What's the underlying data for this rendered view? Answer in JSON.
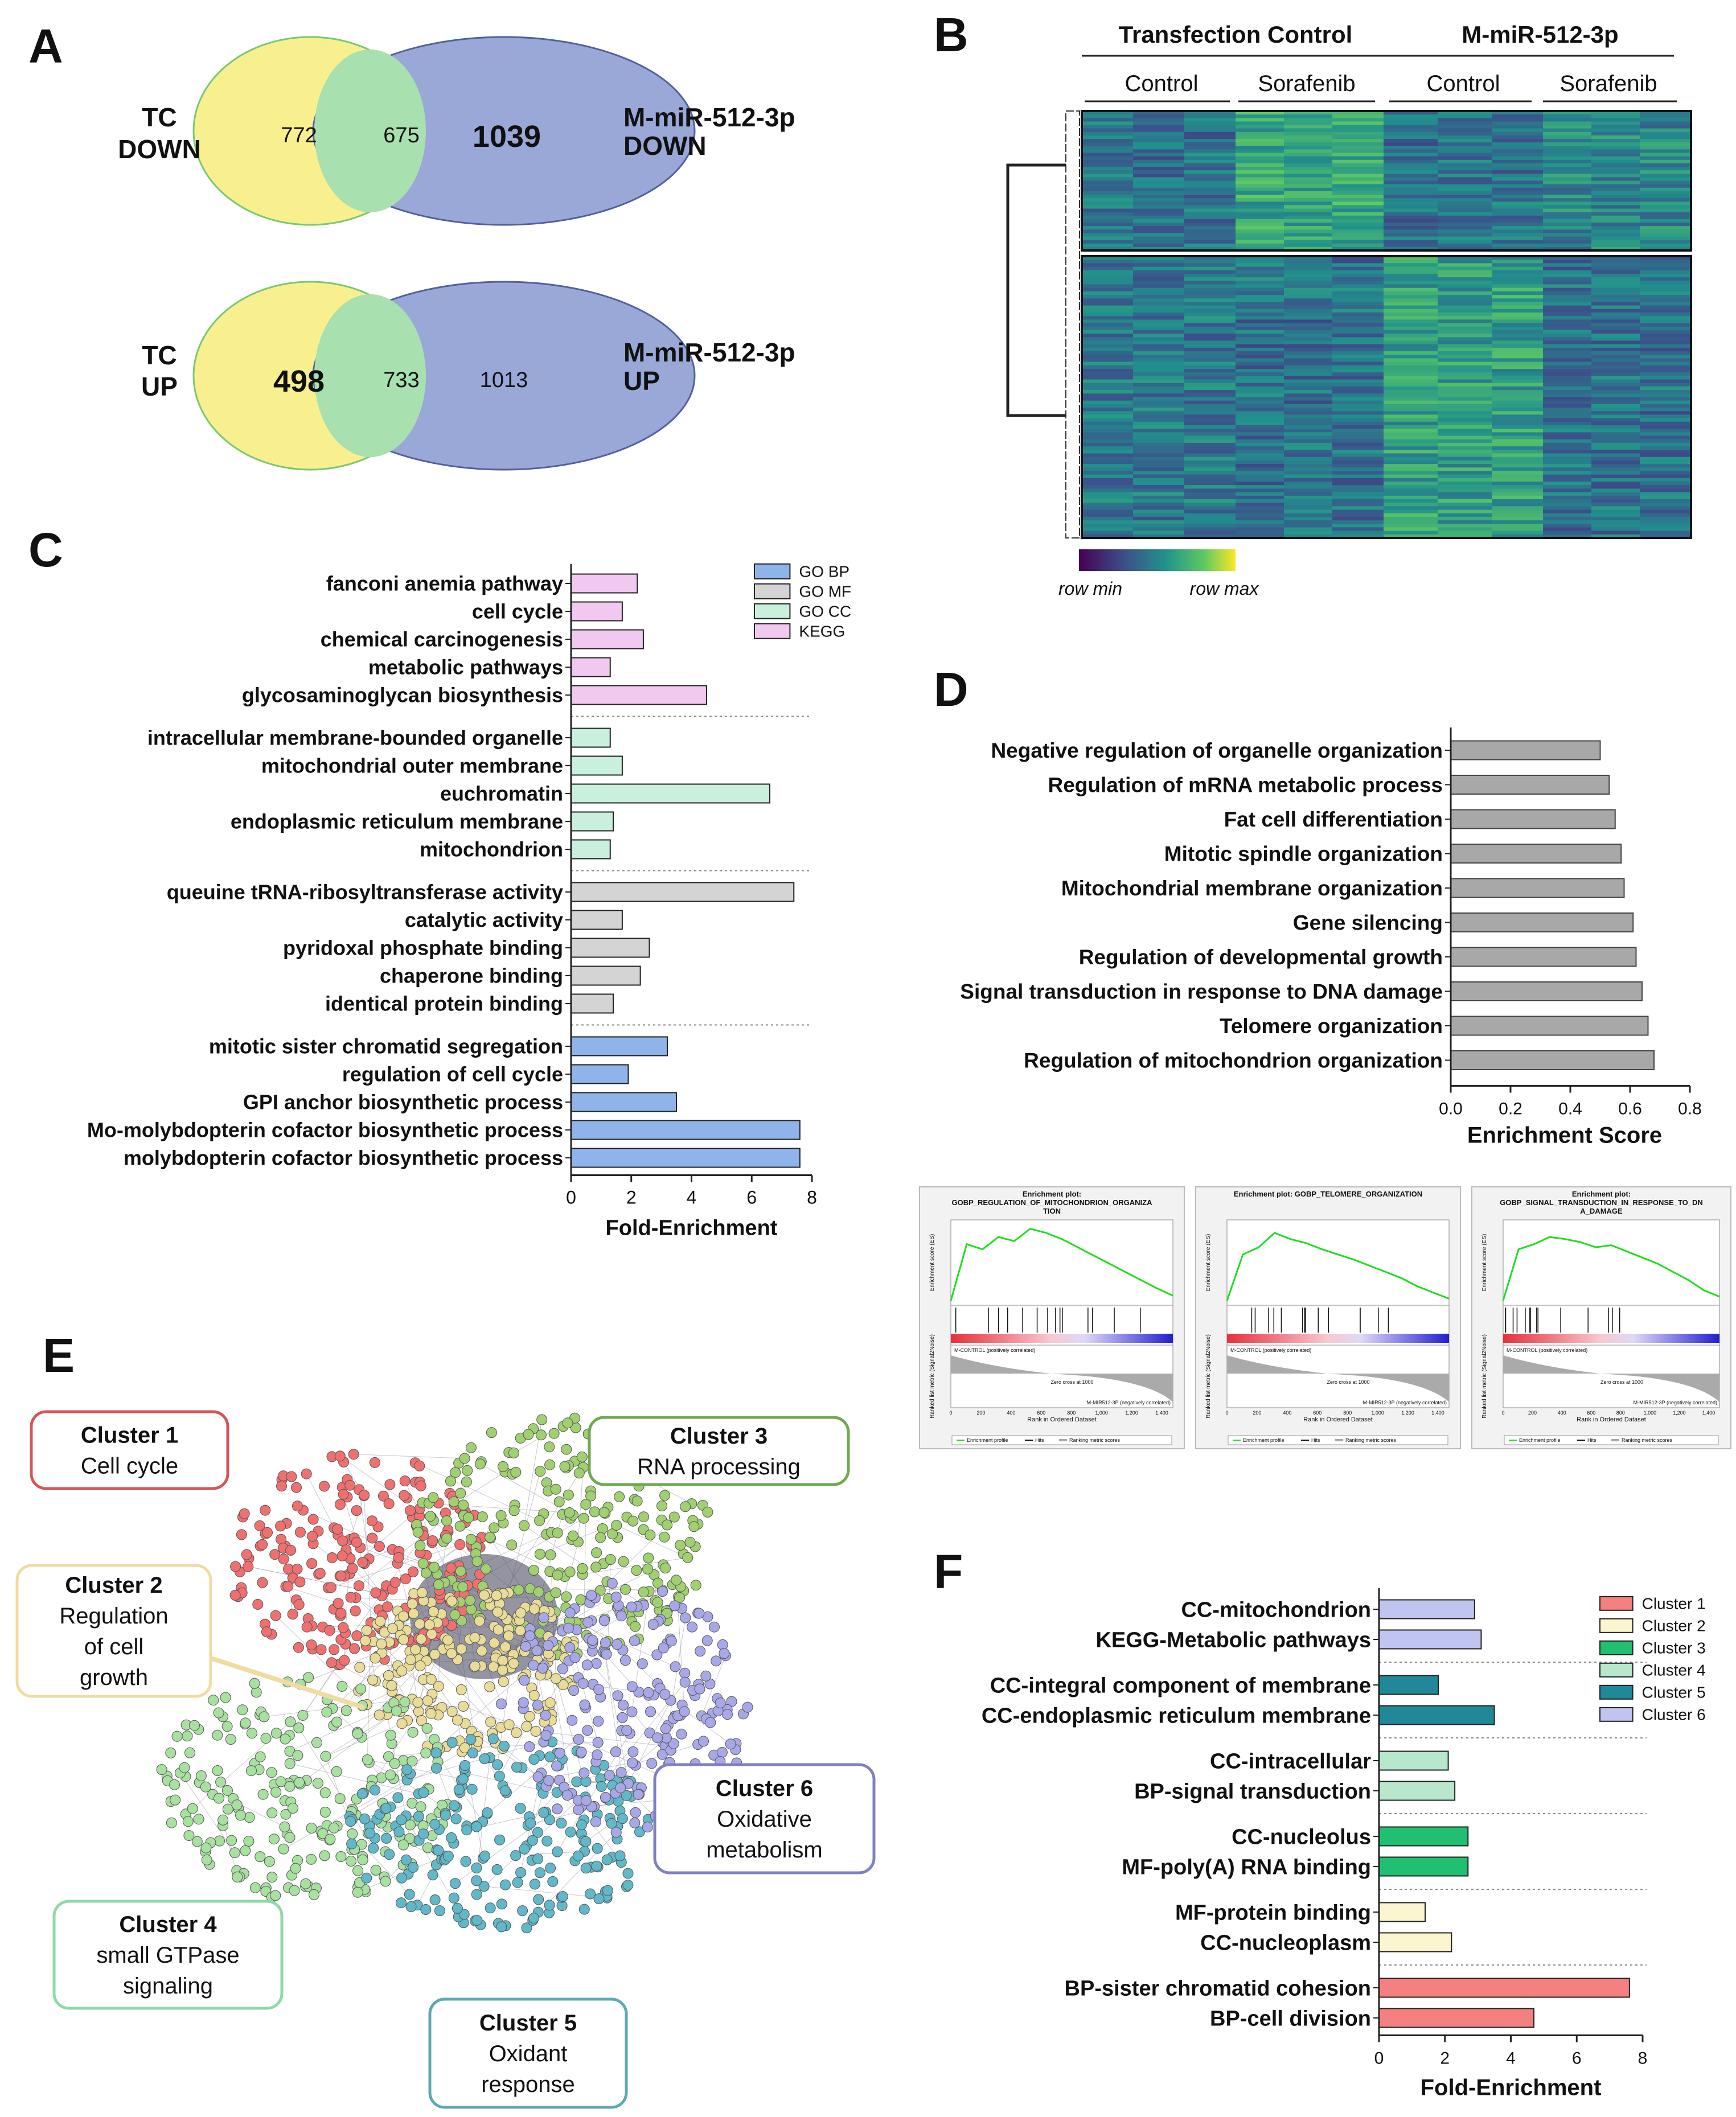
{
  "panel_letters": {
    "a": "A",
    "b": "B",
    "c": "C",
    "d": "D",
    "e": "E",
    "f": "F"
  },
  "colors": {
    "yellow": "#f8f08f",
    "green": "#a8e0b0",
    "blue": "#9aa8d8",
    "go_bp": "#8fb4ea",
    "go_mf": "#d4d4d4",
    "go_cc": "#c8f0dc",
    "kegg": "#f0c8f0",
    "d_bar": "#a8a8a8",
    "cluster1": "#f48080",
    "cluster2": "#fcf6d0",
    "cluster3": "#20c070",
    "cluster4": "#b8e8cc",
    "cluster5": "#208898",
    "cluster6": "#c0c4f0"
  },
  "venn": [
    {
      "left_label_1": "TC",
      "left_label_2": "DOWN",
      "right_label_1": "M-miR-512-3p",
      "right_label_2": "DOWN",
      "left_only": "772",
      "overlap": "675",
      "right_only": "1039",
      "bold_side": "right"
    },
    {
      "left_label_1": "TC",
      "left_label_2": "UP",
      "right_label_1": "M-miR-512-3p",
      "right_label_2": "UP",
      "left_only": "498",
      "overlap": "733",
      "right_only": "1013",
      "bold_side": "left"
    }
  ],
  "heatmap": {
    "group_1": "Transfection Control",
    "group_2": "M-miR-512-3p",
    "sub_labels": [
      "Control",
      "Sorafenib",
      "Control",
      "Sorafenib"
    ],
    "legend_min": "row min",
    "legend_max": "row max"
  },
  "chart_data": [
    {
      "id": "C",
      "type": "bar",
      "orientation": "horizontal",
      "xlabel": "Fold-Enrichment",
      "xlim": [
        0,
        8
      ],
      "xticks": [
        0,
        2,
        4,
        6,
        8
      ],
      "legend": [
        {
          "name": "GO BP",
          "color_key": "go_bp"
        },
        {
          "name": "GO MF",
          "color_key": "go_mf"
        },
        {
          "name": "GO CC",
          "color_key": "go_cc"
        },
        {
          "name": "KEGG",
          "color_key": "kegg"
        }
      ],
      "groups": [
        {
          "series": "KEGG",
          "color_key": "kegg",
          "categories": [
            "fanconi anemia pathway",
            "cell cycle",
            "chemical carcinogenesis",
            "metabolic pathways",
            "glycosaminoglycan biosynthesis"
          ],
          "values": [
            2.2,
            1.7,
            2.4,
            1.3,
            4.5
          ]
        },
        {
          "series": "GO CC",
          "color_key": "go_cc",
          "categories": [
            "intracellular membrane-bounded organelle",
            "mitochondrial outer membrane",
            "euchromatin",
            "endoplasmic reticulum membrane",
            "mitochondrion"
          ],
          "values": [
            1.3,
            1.7,
            6.6,
            1.4,
            1.3
          ]
        },
        {
          "series": "GO MF",
          "color_key": "go_mf",
          "categories": [
            "queuine tRNA-ribosyltransferase activity",
            "catalytic activity",
            "pyridoxal phosphate binding",
            "chaperone binding",
            "identical protein binding"
          ],
          "values": [
            7.4,
            1.7,
            2.6,
            2.3,
            1.4
          ]
        },
        {
          "series": "GO BP",
          "color_key": "go_bp",
          "categories": [
            "mitotic sister chromatid segregation",
            "regulation of cell cycle",
            "GPI anchor biosynthetic process",
            "Mo-molybdopterin cofactor biosynthetic process",
            "molybdopterin cofactor biosynthetic process"
          ],
          "values": [
            3.2,
            1.9,
            3.5,
            7.6,
            7.6
          ]
        }
      ]
    },
    {
      "id": "D",
      "type": "bar",
      "orientation": "horizontal",
      "xlabel": "Enrichment  Score",
      "xlim": [
        0,
        0.8
      ],
      "xticks": [
        "0.0",
        "0.2",
        "0.4",
        "0.6",
        "0.8"
      ],
      "categories": [
        "Negative regulation of organelle organization",
        "Regulation of mRNA metabolic process",
        "Fat cell differentiation",
        "Mitotic spindle organization",
        "Mitochondrial membrane organization",
        "Gene silencing",
        "Regulation of developmental growth",
        "Signal transduction in response to DNA damage",
        "Telomere organization",
        "Regulation of mitochondrion organization"
      ],
      "values": [
        0.5,
        0.53,
        0.55,
        0.57,
        0.58,
        0.61,
        0.62,
        0.64,
        0.66,
        0.68
      ]
    },
    {
      "id": "F",
      "type": "bar",
      "orientation": "horizontal",
      "xlabel": "Fold-Enrichment",
      "xlim": [
        0,
        8
      ],
      "xticks": [
        0,
        2,
        4,
        6,
        8
      ],
      "legend": [
        {
          "name": "Cluster 1",
          "color_key": "cluster1"
        },
        {
          "name": "Cluster 2",
          "color_key": "cluster2"
        },
        {
          "name": "Cluster 3",
          "color_key": "cluster3"
        },
        {
          "name": "Cluster 4",
          "color_key": "cluster4"
        },
        {
          "name": "Cluster 5",
          "color_key": "cluster5"
        },
        {
          "name": "Cluster 6",
          "color_key": "cluster6"
        }
      ],
      "groups": [
        {
          "series": "Cluster 6",
          "color_key": "cluster6",
          "categories": [
            "CC-mitochondrion",
            "KEGG-Metabolic pathways"
          ],
          "values": [
            2.9,
            3.1
          ]
        },
        {
          "series": "Cluster 5",
          "color_key": "cluster5",
          "categories": [
            "CC-integral component of membrane",
            "CC-endoplasmic reticulum membrane"
          ],
          "values": [
            1.8,
            3.5
          ]
        },
        {
          "series": "Cluster 4",
          "color_key": "cluster4",
          "categories": [
            "CC-intracellular",
            "BP-signal transduction"
          ],
          "values": [
            2.1,
            2.3
          ]
        },
        {
          "series": "Cluster 3",
          "color_key": "cluster3",
          "categories": [
            "CC-nucleolus",
            "MF-poly(A) RNA binding"
          ],
          "values": [
            2.7,
            2.7
          ]
        },
        {
          "series": "Cluster 2",
          "color_key": "cluster2",
          "categories": [
            "MF-protein binding",
            "CC-nucleoplasm"
          ],
          "values": [
            1.4,
            2.2
          ]
        },
        {
          "series": "Cluster 1",
          "color_key": "cluster1",
          "categories": [
            "BP-sister chromatid cohesion",
            "BP-cell division"
          ],
          "values": [
            7.6,
            4.7
          ]
        }
      ]
    }
  ],
  "gsea": [
    {
      "title_1": "Enrichment plot:",
      "title_2": "GOBP_REGULATION_OF_MITOCHONDRION_ORGANIZA",
      "title_3": "TION",
      "es": [
        0.0,
        0.55,
        0.5,
        0.62,
        0.58,
        0.7,
        0.66,
        0.6,
        0.52,
        0.44,
        0.36,
        0.28,
        0.2,
        0.12,
        0.05
      ]
    },
    {
      "title_1": "Enrichment plot: GOBP_TELOMERE_ORGANIZATION",
      "title_2": "",
      "title_3": "",
      "es": [
        0.0,
        0.45,
        0.52,
        0.66,
        0.6,
        0.56,
        0.5,
        0.45,
        0.4,
        0.34,
        0.28,
        0.22,
        0.14,
        0.08,
        0.02
      ]
    },
    {
      "title_1": "Enrichment plot:",
      "title_2": "GOBP_SIGNAL_TRANSDUCTION_IN_RESPONSE_TO_DN",
      "title_3": "A_DAMAGE",
      "es": [
        0.0,
        0.5,
        0.55,
        0.62,
        0.6,
        0.57,
        0.52,
        0.54,
        0.48,
        0.42,
        0.36,
        0.28,
        0.2,
        0.1,
        0.04
      ]
    }
  ],
  "gsea_common": {
    "es_label": "Enrichment score (ES)",
    "metric_label": "Ranked list metric (Signal2Noise)",
    "rank_label": "Rank in Ordered Dataset",
    "pos_label": "M-CONTROL (positively correlated)",
    "neg_label": "M-MIR512-3P (negatively correlated)",
    "zero_cross": "Zero cross at 1000",
    "legend_1": "Enrichment profile",
    "legend_2": "Hits",
    "legend_3": "Ranking metric scores",
    "rank_ticks": [
      "0",
      "200",
      "400",
      "600",
      "800",
      "1,000",
      "1,200",
      "1,400"
    ]
  },
  "network_clusters": [
    {
      "name": "Cluster 1",
      "desc": [
        "Cell cycle"
      ],
      "color_key": "cluster1",
      "border": "#d05858"
    },
    {
      "name": "Cluster 2",
      "desc": [
        "Regulation",
        "of cell",
        "growth"
      ],
      "color_key": "cluster2",
      "border": "#f0dca0"
    },
    {
      "name": "Cluster 3",
      "desc": [
        "RNA processing"
      ],
      "color_key": "cluster3",
      "border": "#70a850"
    },
    {
      "name": "Cluster 4",
      "desc": [
        "small GTPase",
        "signaling"
      ],
      "color_key": "cluster4",
      "border": "#90d8a8"
    },
    {
      "name": "Cluster 5",
      "desc": [
        "Oxidant",
        "response"
      ],
      "color_key": "cluster5",
      "border": "#60a8b0"
    },
    {
      "name": "Cluster 6",
      "desc": [
        "Oxidative",
        "metabolism"
      ],
      "color_key": "cluster6",
      "border": "#8080c0"
    }
  ]
}
